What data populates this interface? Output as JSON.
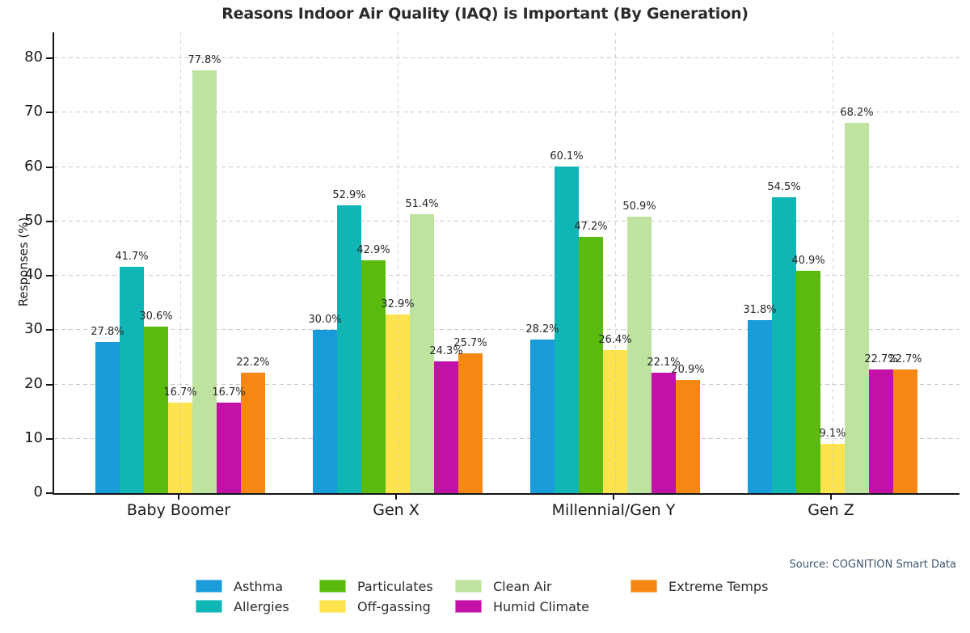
{
  "chart_data": {
    "type": "bar",
    "title": "Reasons Indoor Air Quality (IAQ) is Important (By Generation)",
    "ylabel": "Responses (%)",
    "xlabel": "",
    "categories": [
      "Baby Boomer",
      "Gen X",
      "Millennial/Gen Y",
      "Gen Z"
    ],
    "series": [
      {
        "name": "Asthma",
        "color": "#1a9cd8",
        "values": [
          27.8,
          30.0,
          28.2,
          31.8
        ]
      },
      {
        "name": "Allergies",
        "color": "#10b5b5",
        "values": [
          41.7,
          52.9,
          60.1,
          54.5
        ]
      },
      {
        "name": "Particulates",
        "color": "#5abb0e",
        "values": [
          30.6,
          42.9,
          47.2,
          40.9
        ]
      },
      {
        "name": "Off-gassing",
        "color": "#fde44e",
        "values": [
          16.7,
          32.9,
          26.4,
          9.1
        ]
      },
      {
        "name": "Clean Air",
        "color": "#bee2a0",
        "values": [
          77.8,
          51.4,
          50.9,
          68.2
        ]
      },
      {
        "name": "Humid Climate",
        "color": "#c211a7",
        "values": [
          16.7,
          24.3,
          22.1,
          22.7
        ]
      },
      {
        "name": "Extreme Temps",
        "color": "#f68712",
        "values": [
          22.2,
          25.7,
          20.9,
          22.7
        ]
      }
    ],
    "ylim": [
      0,
      84.8
    ],
    "yticks": [
      0,
      10,
      20,
      30,
      40,
      50,
      60,
      70,
      80
    ],
    "grid": true,
    "legend_position": "bottom",
    "legend_columns": 4,
    "value_label_suffix": "%"
  },
  "source": "Source: COGNITION Smart Data"
}
